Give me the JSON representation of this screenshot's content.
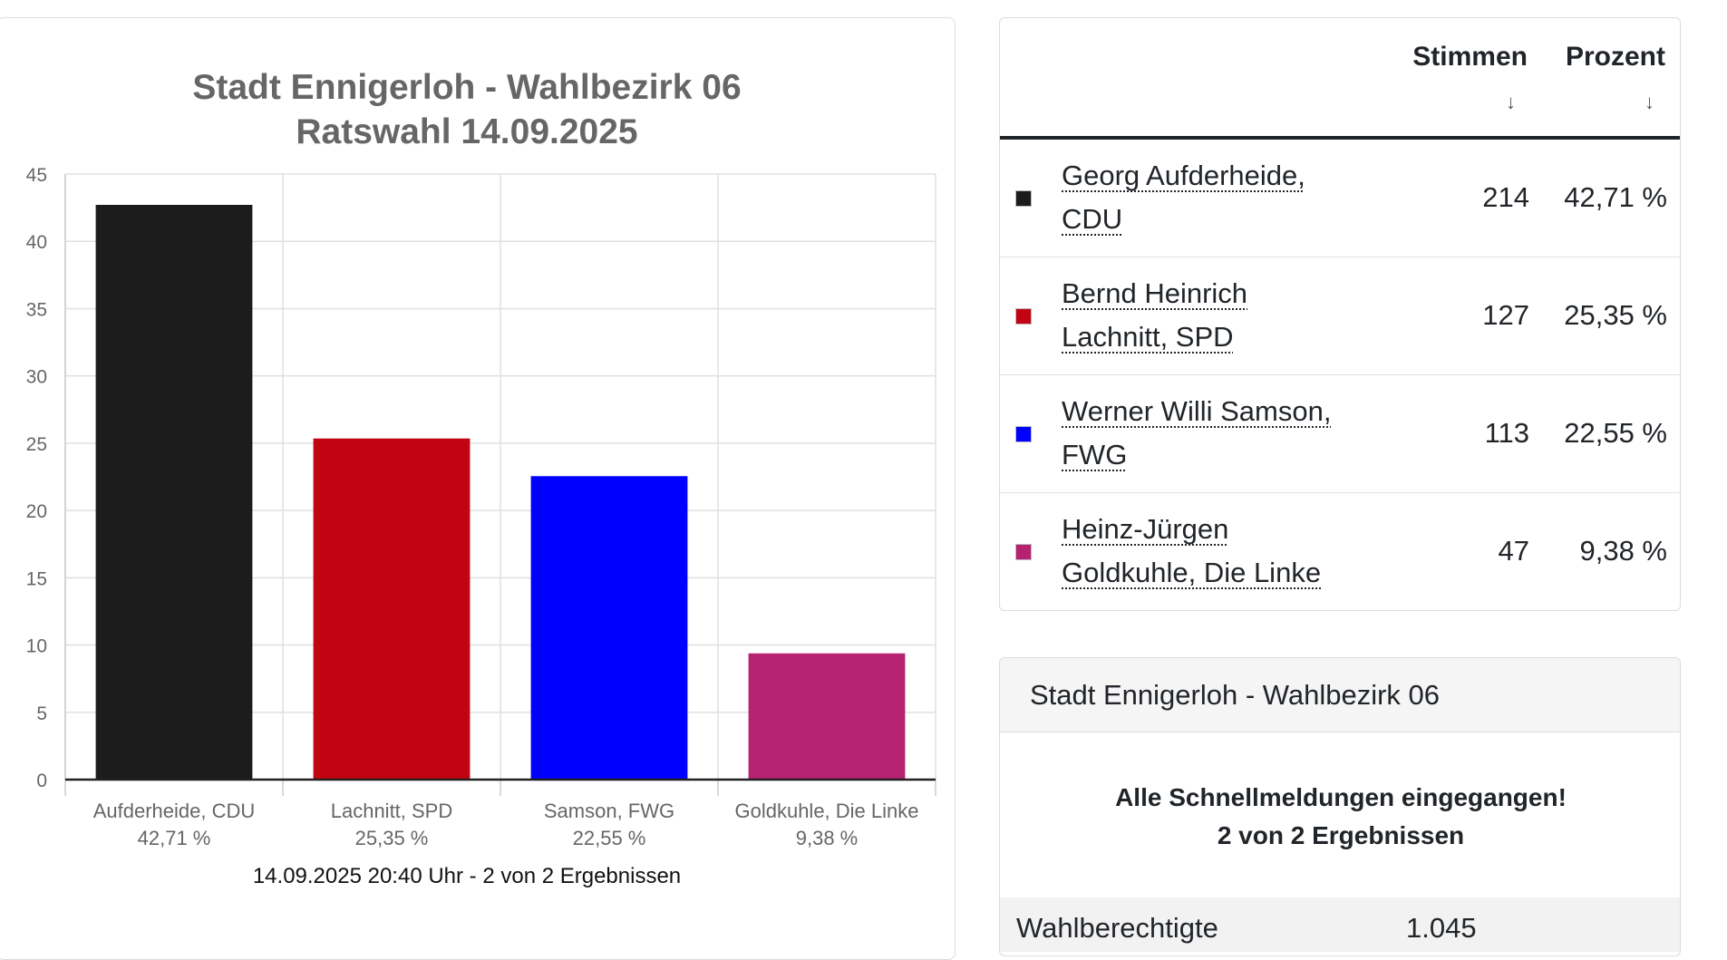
{
  "chart_data": {
    "type": "bar",
    "title": [
      "Stadt Ennigerloh - Wahlbezirk 06",
      "Ratswahl 14.09.2025"
    ],
    "categories": [
      "Aufderheide, CDU",
      "Lachnitt, SPD",
      "Samson, FWG",
      "Goldkuhle, Die Linke"
    ],
    "category_sublabels": [
      "42,71 %",
      "25,35 %",
      "22,55 %",
      "9,38 %"
    ],
    "values": [
      42.71,
      25.35,
      22.55,
      9.38
    ],
    "colors": [
      "#1c1c1c",
      "#c20412",
      "#0000ff",
      "#b52270"
    ],
    "ylim": [
      0,
      45
    ],
    "yticks": [
      0,
      5,
      10,
      15,
      20,
      25,
      30,
      35,
      40,
      45
    ],
    "grid": true,
    "footer": "14.09.2025 20:40 Uhr - 2 von 2 Ergebnissen"
  },
  "table": {
    "headers": {
      "votes": "Stimmen",
      "percent": "Prozent",
      "sort_icon": "arrow-down-icon",
      "sort_glyph": "↓"
    },
    "rows": [
      {
        "line1": "Georg Aufderheide,",
        "line2": "CDU",
        "votes": "214",
        "percent": "42,71 %",
        "color": "#1c1c1c"
      },
      {
        "line1": "Bernd Heinrich",
        "line2": "Lachnitt, SPD",
        "votes": "127",
        "percent": "25,35 %",
        "color": "#c20412"
      },
      {
        "line1": "Werner Willi Samson,",
        "line2": "FWG",
        "votes": "113",
        "percent": "22,55 %",
        "color": "#0000ff"
      },
      {
        "line1": "Heinz-Jürgen",
        "line2": "Goldkuhle, Die Linke",
        "votes": "47",
        "percent": "9,38 %",
        "color": "#b52270"
      }
    ]
  },
  "info": {
    "header": "Stadt Ennigerloh - Wahlbezirk 06",
    "status_line1": "Alle Schnellmeldungen eingegangen!",
    "status_line2": "2 von 2 Ergebnissen",
    "row_label": "Wahlberechtigte",
    "row_value": "1.045"
  }
}
